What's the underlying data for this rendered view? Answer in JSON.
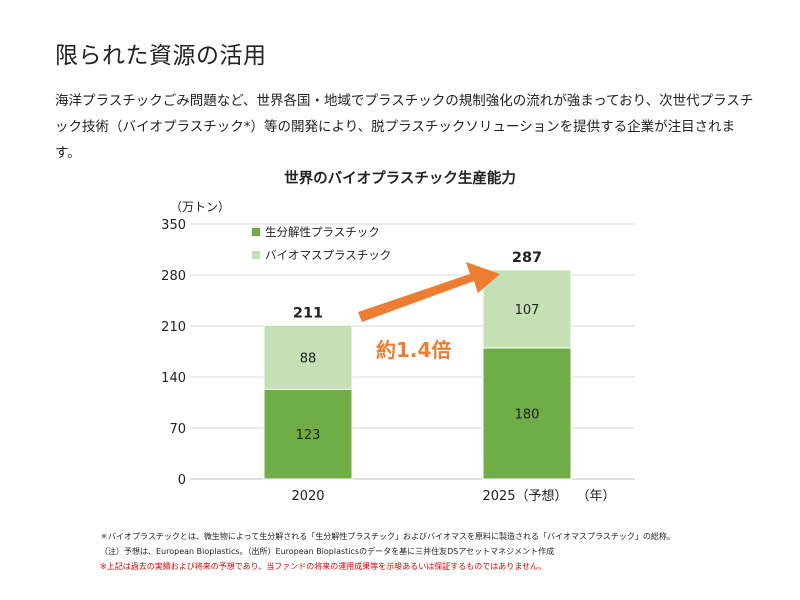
{
  "page": {
    "title": "限られた資源の活用",
    "intro": "海洋プラスチックごみ問題など、世界各国・地域でプラスチックの規制強化の流れが強まっており、次世代プラスチック技術（バイオプラスチック*）等の開発により、脱プラスチックソリューションを提供する企業が注目されます。"
  },
  "chart_data": {
    "type": "bar",
    "stacked": true,
    "title": "世界のバイオプラスチック生産能力",
    "ylabel": "（万トン）",
    "xlabel": "（年）",
    "categories": [
      "2020",
      "2025（予想）"
    ],
    "series": [
      {
        "name": "生分解性プラスチック",
        "values": [
          123,
          180
        ],
        "color": "#70ad47"
      },
      {
        "name": "バイオマスプラスチック",
        "values": [
          88,
          107
        ],
        "color": "#c5e0b4"
      }
    ],
    "totals": [
      211,
      287
    ],
    "ylim": [
      0,
      350
    ],
    "yticks": [
      0,
      70,
      140,
      210,
      280,
      350
    ],
    "grid": true,
    "legend": "top-left",
    "annotation": {
      "text": "約1.4倍",
      "color": "#ed7d31"
    }
  },
  "footnotes": [
    "＊バイオプラスチックとは、微生物によって生分解される「生分解性プラスチック」およびバイオマスを原料に製造される「バイオマスプラスチック」の総称。",
    "（注）予想は、European Bioplastics。（出所）European Bioplasticsのデータを基に三井住友DSアセットマネジメント作成",
    "※上記は過去の実績および将来の予想であり、当ファンドの将来の運用成果等を示唆あるいは保証するものではありません。"
  ]
}
